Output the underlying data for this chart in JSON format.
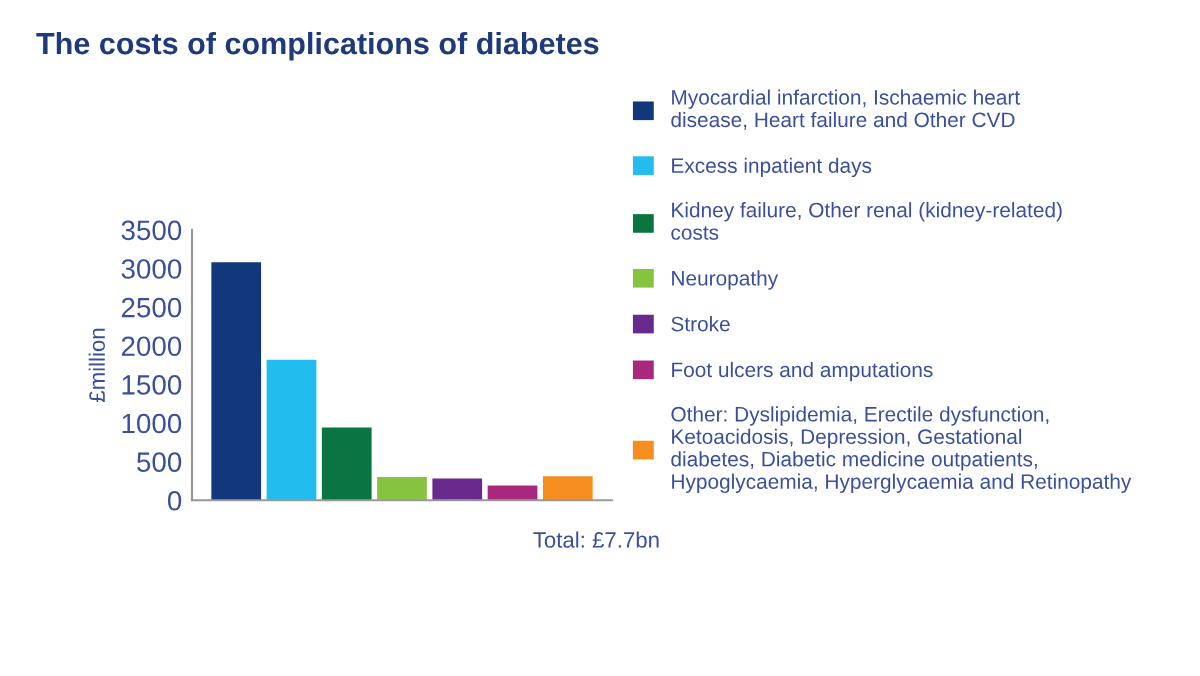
{
  "chart_data": {
    "type": "bar",
    "title": "The costs of complications of diabetes",
    "ylabel": "£million",
    "categories": [
      null,
      null,
      null,
      null,
      null,
      null,
      null
    ],
    "series": [
      {
        "name": "Myocardial infarction, Ischaemic heart disease, Heart failure and Other CVD",
        "color": "#12377a",
        "values": [
          3080,
          null,
          null,
          null,
          null,
          null,
          null
        ]
      },
      {
        "name": "Excess inpatient days",
        "color": "#22bcee",
        "values": [
          null,
          1820,
          null,
          null,
          null,
          null,
          null
        ]
      },
      {
        "name": "Kidney failure, Other renal (kidney-related) costs",
        "color": "#0b7542",
        "values": [
          null,
          null,
          940,
          null,
          null,
          null,
          null
        ]
      },
      {
        "name": "Neuropathy",
        "color": "#86c440",
        "values": [
          null,
          null,
          null,
          300,
          null,
          null,
          null
        ]
      },
      {
        "name": "Stroke",
        "color": "#682a8c",
        "values": [
          null,
          null,
          null,
          null,
          280,
          null,
          null
        ]
      },
      {
        "name": "Foot ulcers and amputations",
        "color": "#a8287e",
        "values": [
          null,
          null,
          null,
          null,
          null,
          190,
          null
        ]
      },
      {
        "name": "Other: Dyslipidemia, Erectile dysfunction, Ketoacidosis, Depression, Gestational diabetes, Diabetic medicine outpatients, Hypoglycaemia, Hyperglycaemia and Retinopathy",
        "color": "#f68d1f",
        "values": [
          null,
          null,
          null,
          null,
          null,
          null,
          310
        ]
      }
    ],
    "ylim": [
      0,
      3500
    ],
    "yticks": [
      0,
      500,
      1000,
      1500,
      2000,
      2500,
      3000,
      3500
    ],
    "annotations": [
      "Total: £7.7bn"
    ],
    "legend": "right",
    "grid": false
  }
}
